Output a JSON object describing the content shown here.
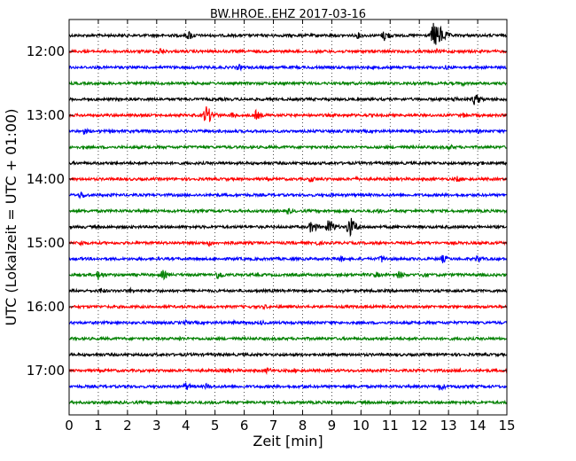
{
  "chart_data": {
    "type": "line",
    "title": "BW.HROE..EHZ 2017-03-16",
    "xlabel": "Zeit  [min]",
    "ylabel": "UTC (Lokalzeit = UTC + 01:00)",
    "xlim": [
      0,
      15
    ],
    "x_ticks": [
      0,
      1,
      2,
      3,
      4,
      5,
      6,
      7,
      8,
      9,
      10,
      11,
      12,
      13,
      14,
      15
    ],
    "x_tick_labels": [
      "0",
      "1",
      "2",
      "3",
      "4",
      "5",
      "6",
      "7",
      "8",
      "9",
      "10",
      "11",
      "12",
      "13",
      "14",
      "15"
    ],
    "y_tick_labels": [
      "12:00",
      "13:00",
      "14:00",
      "15:00",
      "16:00",
      "17:00"
    ],
    "y_ticks_utc_hours": [
      12,
      13,
      14,
      15,
      16,
      17
    ],
    "trace_interval_minutes": 15,
    "trace_start": "11:45",
    "trace_end": "17:45",
    "grid": "vertical-dotted",
    "color_cycle": [
      "#000000",
      "#ff0000",
      "#0000ff",
      "#008000"
    ],
    "series": [
      {
        "start": "11:45",
        "color": "#000000",
        "events": [
          [
            4.1,
            6
          ],
          [
            9.9,
            4
          ],
          [
            10.8,
            7
          ],
          [
            12.5,
            18
          ],
          [
            12.7,
            12
          ]
        ]
      },
      {
        "start": "12:00",
        "color": "#ff0000",
        "events": [
          [
            3.1,
            5
          ],
          [
            12.6,
            3
          ]
        ]
      },
      {
        "start": "12:15",
        "color": "#0000ff",
        "events": [
          [
            5.8,
            4
          ],
          [
            12.9,
            3
          ]
        ]
      },
      {
        "start": "12:30",
        "color": "#008000",
        "events": [
          [
            2.0,
            2
          ],
          [
            13.5,
            3
          ]
        ]
      },
      {
        "start": "12:45",
        "color": "#000000",
        "events": [
          [
            13.9,
            8
          ],
          [
            13.2,
            4
          ]
        ]
      },
      {
        "start": "13:00",
        "color": "#ff0000",
        "events": [
          [
            4.7,
            12
          ],
          [
            5.6,
            4
          ],
          [
            6.4,
            6
          ],
          [
            13.5,
            3
          ]
        ]
      },
      {
        "start": "13:15",
        "color": "#0000ff",
        "events": [
          [
            0.5,
            4
          ],
          [
            14.0,
            3
          ]
        ]
      },
      {
        "start": "13:30",
        "color": "#008000",
        "events": [
          [
            13.0,
            4
          ]
        ]
      },
      {
        "start": "13:45",
        "color": "#000000",
        "events": [
          [
            14.0,
            4
          ]
        ]
      },
      {
        "start": "14:00",
        "color": "#ff0000",
        "events": [
          [
            8.3,
            4
          ],
          [
            9.8,
            3
          ],
          [
            13.3,
            4
          ]
        ]
      },
      {
        "start": "14:15",
        "color": "#0000ff",
        "events": [
          [
            0.4,
            5
          ],
          [
            9.0,
            3
          ]
        ]
      },
      {
        "start": "14:30",
        "color": "#008000",
        "events": [
          [
            3.0,
            2
          ],
          [
            7.5,
            4
          ],
          [
            10.6,
            3
          ]
        ]
      },
      {
        "start": "14:45",
        "color": "#000000",
        "events": [
          [
            8.3,
            8
          ],
          [
            8.9,
            10
          ],
          [
            9.6,
            14
          ]
        ]
      },
      {
        "start": "15:00",
        "color": "#ff0000",
        "events": [
          [
            0.4,
            4
          ],
          [
            4.8,
            4
          ],
          [
            5.6,
            3
          ],
          [
            8.5,
            3
          ]
        ]
      },
      {
        "start": "15:15",
        "color": "#0000ff",
        "events": [
          [
            9.3,
            4
          ],
          [
            10.7,
            5
          ],
          [
            12.8,
            5
          ],
          [
            14.0,
            5
          ]
        ]
      },
      {
        "start": "15:30",
        "color": "#008000",
        "events": [
          [
            1.0,
            6
          ],
          [
            3.2,
            6
          ],
          [
            5.1,
            6
          ],
          [
            10.5,
            4
          ],
          [
            11.3,
            5
          ],
          [
            12.1,
            4
          ]
        ]
      },
      {
        "start": "15:45",
        "color": "#000000",
        "events": [
          [
            1.1,
            4
          ],
          [
            2.1,
            3
          ],
          [
            9.3,
            3
          ]
        ]
      },
      {
        "start": "16:00",
        "color": "#ff0000",
        "events": [
          [
            1.0,
            2
          ],
          [
            6.7,
            3
          ]
        ]
      },
      {
        "start": "16:15",
        "color": "#0000ff",
        "events": [
          [
            4.0,
            3
          ],
          [
            5.6,
            3
          ],
          [
            6.6,
            3
          ]
        ]
      },
      {
        "start": "16:30",
        "color": "#008000",
        "events": [
          [
            3.8,
            3
          ],
          [
            13.0,
            2
          ]
        ]
      },
      {
        "start": "16:45",
        "color": "#000000",
        "events": [
          [
            3.0,
            2
          ]
        ]
      },
      {
        "start": "17:00",
        "color": "#ff0000",
        "events": [
          [
            5.4,
            4
          ],
          [
            6.8,
            4
          ],
          [
            7.7,
            3
          ],
          [
            13.4,
            3
          ]
        ]
      },
      {
        "start": "17:15",
        "color": "#0000ff",
        "events": [
          [
            2.0,
            3
          ],
          [
            4.0,
            5
          ],
          [
            4.7,
            4
          ],
          [
            8.0,
            3
          ],
          [
            12.7,
            5
          ],
          [
            13.3,
            3
          ]
        ]
      },
      {
        "start": "17:30",
        "color": "#008000",
        "events": [
          [
            5.0,
            2
          ]
        ]
      }
    ]
  }
}
